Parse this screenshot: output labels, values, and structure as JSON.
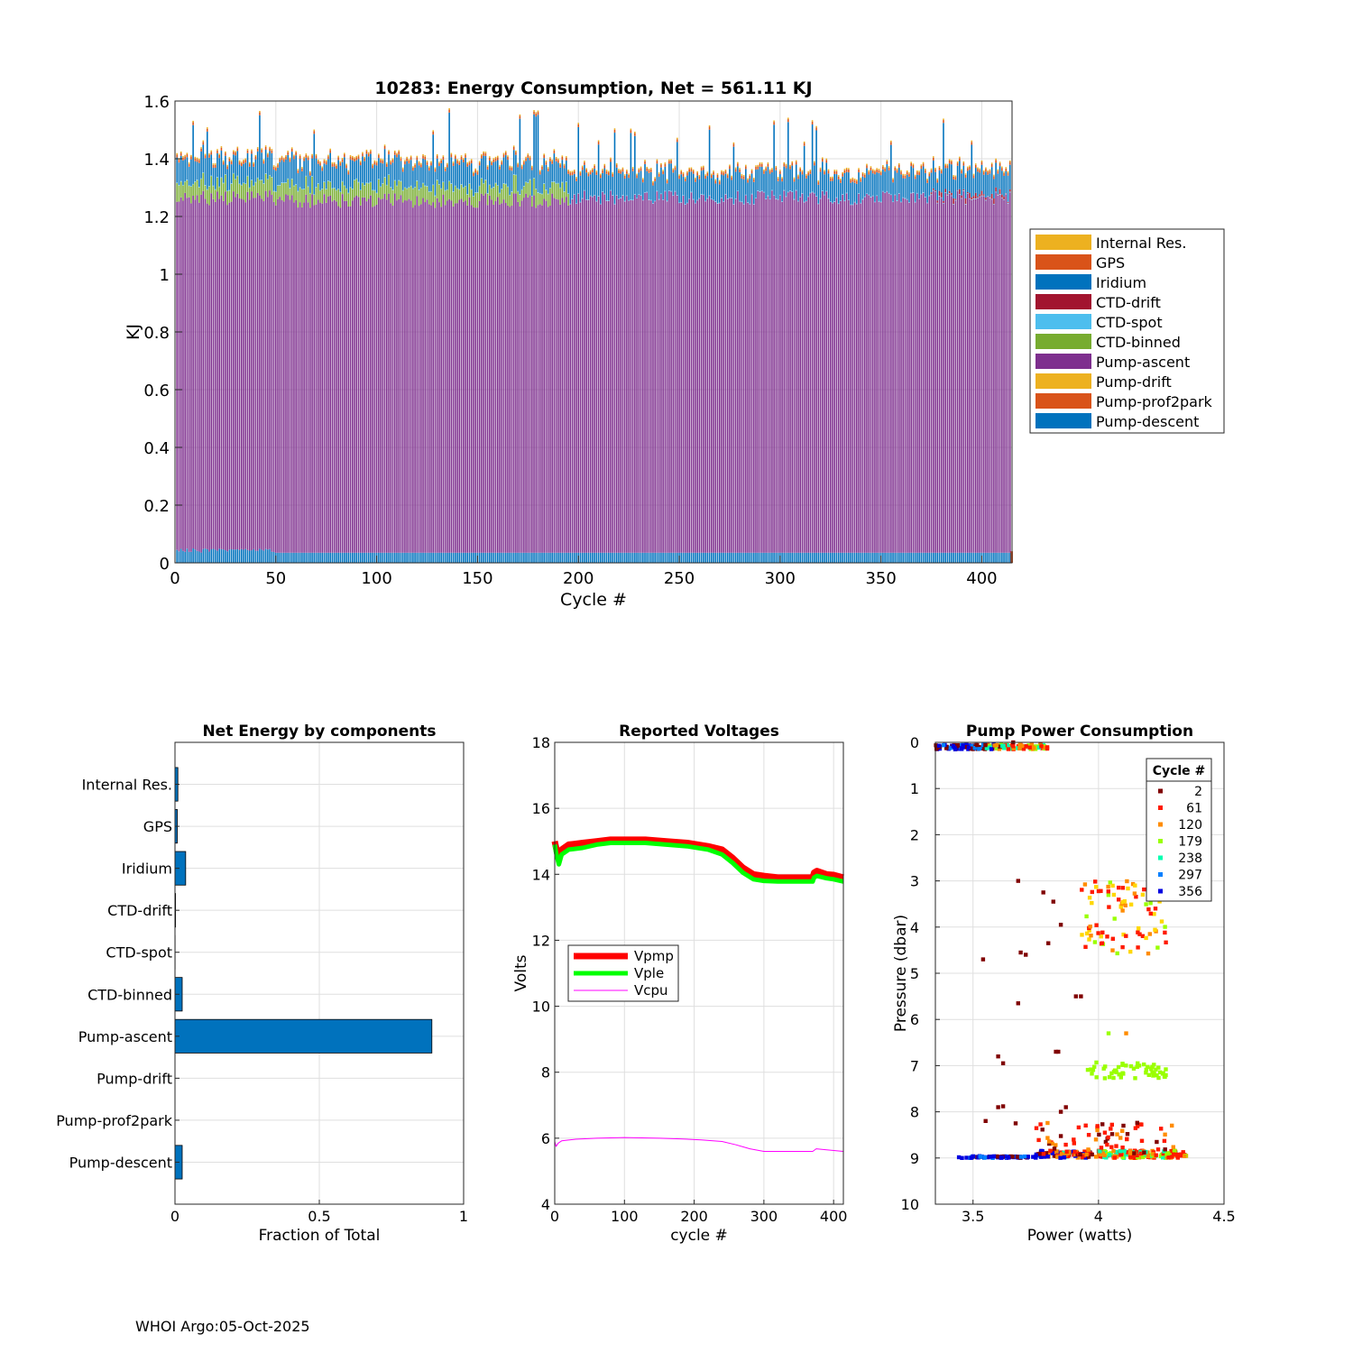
{
  "footer": "WHOI Argo:05-Oct-2025",
  "chart_data": [
    {
      "type": "bar",
      "stacked": true,
      "title": "10283: Energy Consumption,  Net = 561.11 KJ",
      "xlabel": "Cycle #",
      "ylabel": "KJ",
      "xlim": [
        0,
        415
      ],
      "ylim": [
        0,
        1.6
      ],
      "xticks": [
        0,
        50,
        100,
        150,
        200,
        250,
        300,
        350,
        400
      ],
      "yticks": [
        0,
        0.2,
        0.4,
        0.6,
        0.8,
        1,
        1.2,
        1.4,
        1.6
      ],
      "n_cycles": 414,
      "legend_position": "outside-right",
      "series": [
        {
          "name": "Internal Res.",
          "color": "#EDB120"
        },
        {
          "name": "GPS",
          "color": "#D95319"
        },
        {
          "name": "Iridium",
          "color": "#0072BD"
        },
        {
          "name": "CTD-drift",
          "color": "#A2142F"
        },
        {
          "name": "CTD-spot",
          "color": "#4DBEEE"
        },
        {
          "name": "CTD-binned",
          "color": "#77AC30"
        },
        {
          "name": "Pump-ascent",
          "color": "#7E2F8E"
        },
        {
          "name": "Pump-drift",
          "color": "#EDB120"
        },
        {
          "name": "Pump-prof2park",
          "color": "#D95319"
        },
        {
          "name": "Pump-descent",
          "color": "#0072BD"
        }
      ],
      "typical_values_kj": {
        "Pump-descent": 0.035,
        "Pump-prof2park": 0.0,
        "Pump-drift": 0.0,
        "Pump-ascent_cycles_1_to_195": 1.22,
        "Pump-ascent_cycles_196_to_414": 1.23,
        "CTD-binned_cycles_1_to_195": 0.05,
        "CTD-binned_cycles_196_to_414": 0.0,
        "CTD-spot": 0.002,
        "CTD-drift_cycles_375_to_414": 0.02,
        "Iridium": 0.06,
        "GPS": 0.01,
        "Internal Res.": 0.005
      }
    },
    {
      "type": "bar",
      "orientation": "horizontal",
      "title": "Net Energy by components",
      "xlabel": "Fraction of Total",
      "xlim": [
        0,
        1
      ],
      "xticks": [
        0,
        0.5,
        1
      ],
      "color": "#0072BD",
      "categories": [
        "Internal Res.",
        "GPS",
        "Iridium",
        "CTD-drift",
        "CTD-spot",
        "CTD-binned",
        "Pump-ascent",
        "Pump-drift",
        "Pump-prof2park",
        "Pump-descent"
      ],
      "values": [
        0.01,
        0.008,
        0.037,
        0.002,
        0.0005,
        0.025,
        0.89,
        0.0,
        0.0,
        0.025
      ]
    },
    {
      "type": "line",
      "title": "Reported Voltages",
      "xlabel": "cycle #",
      "ylabel": "Volts",
      "xlim": [
        0,
        414
      ],
      "ylim": [
        4,
        18
      ],
      "xticks": [
        0,
        100,
        200,
        300,
        400
      ],
      "yticks": [
        4,
        6,
        8,
        10,
        12,
        14,
        16,
        18
      ],
      "legend_position": "center-left",
      "series": [
        {
          "name": "Vpmp",
          "color": "#FF0000",
          "x": [
            0,
            2,
            6,
            10,
            20,
            40,
            60,
            80,
            100,
            130,
            160,
            190,
            220,
            240,
            255,
            270,
            285,
            300,
            320,
            340,
            360,
            370,
            372,
            376,
            390,
            400,
            414
          ],
          "y": [
            15.0,
            14.8,
            14.45,
            14.75,
            14.9,
            14.95,
            15.0,
            15.05,
            15.05,
            15.05,
            15.0,
            14.95,
            14.85,
            14.75,
            14.5,
            14.2,
            14.0,
            13.95,
            13.9,
            13.9,
            13.9,
            13.9,
            14.05,
            14.1,
            14.0,
            13.98,
            13.9
          ]
        },
        {
          "name": "Vple",
          "color": "#00FF00",
          "x": [
            0,
            2,
            6,
            10,
            20,
            40,
            60,
            80,
            100,
            130,
            160,
            190,
            220,
            240,
            255,
            270,
            285,
            300,
            320,
            340,
            360,
            370,
            372,
            376,
            390,
            400,
            414
          ],
          "y": [
            14.9,
            14.65,
            14.3,
            14.6,
            14.75,
            14.8,
            14.9,
            14.95,
            14.95,
            14.95,
            14.9,
            14.85,
            14.75,
            14.6,
            14.35,
            14.05,
            13.85,
            13.8,
            13.78,
            13.78,
            13.78,
            13.78,
            13.9,
            13.95,
            13.88,
            13.85,
            13.78
          ]
        },
        {
          "name": "Vcpu",
          "color": "#FF00FF",
          "x": [
            0,
            2,
            5,
            10,
            30,
            60,
            100,
            150,
            180,
            210,
            240,
            260,
            280,
            300,
            340,
            370,
            375,
            390,
            414
          ],
          "y": [
            5.9,
            5.75,
            5.85,
            5.92,
            5.97,
            6.0,
            6.02,
            6.0,
            5.98,
            5.95,
            5.9,
            5.8,
            5.68,
            5.6,
            5.6,
            5.6,
            5.68,
            5.65,
            5.6
          ]
        }
      ]
    },
    {
      "type": "scatter",
      "title": "Pump Power Consumption",
      "xlabel": "Power (watts)",
      "ylabel": "Pressure (dbar)",
      "xlim": [
        3.35,
        4.5
      ],
      "ylim": [
        0,
        10
      ],
      "y_reversed": true,
      "xticks": [
        3.5,
        4,
        4.5
      ],
      "yticks": [
        0,
        1,
        2,
        3,
        4,
        5,
        6,
        7,
        8,
        9,
        10
      ],
      "legend_title": "Cycle #",
      "legend_position": "top-right",
      "legend_entries": [
        {
          "label": "2",
          "color": "#800000"
        },
        {
          "label": "61",
          "color": "#FF1A00"
        },
        {
          "label": "120",
          "color": "#FF8C00"
        },
        {
          "label": "179",
          "color": "#9AFF00"
        },
        {
          "label": "238",
          "color": "#00FFB0"
        },
        {
          "label": "297",
          "color": "#0080FF"
        },
        {
          "label": "356",
          "color": "#0000E0"
        }
      ],
      "clusters": [
        {
          "pressure": 0.05,
          "power_range": [
            3.35,
            3.8
          ],
          "spread": 0.1,
          "description": "surface points across all cycles"
        },
        {
          "pressure": 9.0,
          "power_range": [
            3.42,
            4.35
          ],
          "spread": 0.1,
          "description": "park depth points across all cycles"
        },
        {
          "pressure": 3.7,
          "power_range": [
            3.95,
            4.25
          ],
          "spread": 0.9,
          "description": "cycles ~61-120 mid depth"
        },
        {
          "pressure": 7.1,
          "power_range": [
            3.95,
            4.27
          ],
          "spread": 0.2,
          "description": "cycles ~179 mid depth"
        }
      ],
      "sample_points": [
        {
          "power": 3.54,
          "pressure": 4.7,
          "cycle": 2
        },
        {
          "power": 3.68,
          "pressure": 5.65,
          "cycle": 2
        },
        {
          "power": 3.69,
          "pressure": 4.55,
          "cycle": 2
        },
        {
          "power": 3.71,
          "pressure": 4.6,
          "cycle": 2
        },
        {
          "power": 3.68,
          "pressure": 3.0,
          "cycle": 2
        },
        {
          "power": 3.78,
          "pressure": 3.25,
          "cycle": 2
        },
        {
          "power": 3.82,
          "pressure": 3.45,
          "cycle": 2
        },
        {
          "power": 3.85,
          "pressure": 3.95,
          "cycle": 2
        },
        {
          "power": 3.8,
          "pressure": 4.35,
          "cycle": 2
        },
        {
          "power": 3.91,
          "pressure": 5.5,
          "cycle": 2
        },
        {
          "power": 3.93,
          "pressure": 5.5,
          "cycle": 2
        },
        {
          "power": 3.6,
          "pressure": 6.8,
          "cycle": 2
        },
        {
          "power": 3.62,
          "pressure": 6.95,
          "cycle": 2
        },
        {
          "power": 3.83,
          "pressure": 6.7,
          "cycle": 2
        },
        {
          "power": 3.84,
          "pressure": 6.7,
          "cycle": 2
        },
        {
          "power": 3.6,
          "pressure": 7.9,
          "cycle": 2
        },
        {
          "power": 3.62,
          "pressure": 7.88,
          "cycle": 2
        },
        {
          "power": 3.55,
          "pressure": 8.2,
          "cycle": 2
        },
        {
          "power": 3.67,
          "pressure": 8.25,
          "cycle": 2
        },
        {
          "power": 3.87,
          "pressure": 7.9,
          "cycle": 2
        },
        {
          "power": 3.85,
          "pressure": 8.0,
          "cycle": 2
        },
        {
          "power": 4.04,
          "pressure": 6.3,
          "cycle": 179
        },
        {
          "power": 4.11,
          "pressure": 6.3,
          "cycle": 120
        },
        {
          "power": 3.66,
          "pressure": 0.0,
          "cycle": 2
        }
      ]
    }
  ]
}
